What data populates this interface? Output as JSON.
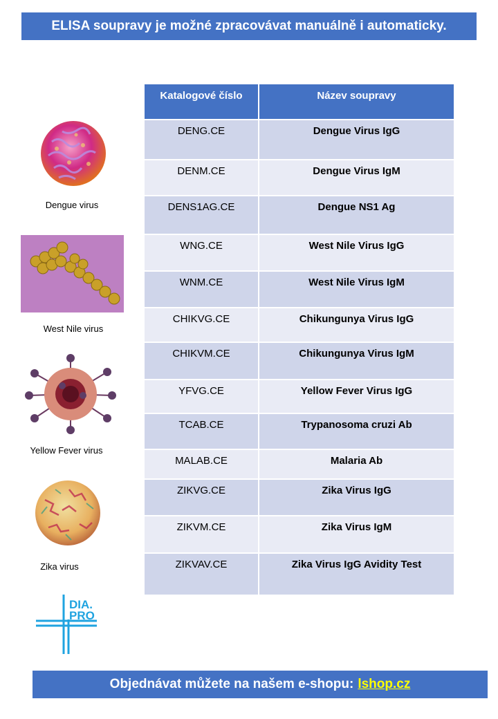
{
  "header": {
    "banner_text": "ELISA soupravy je možné zpracovávat manuálně i automaticky."
  },
  "table": {
    "headers": [
      "Katalogové číslo",
      "Název soupravy"
    ],
    "rows": [
      {
        "catalog": "DENG.CE",
        "name": "Dengue Virus IgG"
      },
      {
        "catalog": "DENM.CE",
        "name": "Dengue Virus IgM"
      },
      {
        "catalog": "DENS1AG.CE",
        "name": "Dengue NS1 Ag"
      },
      {
        "catalog": "WNG.CE",
        "name": "West Nile Virus IgG"
      },
      {
        "catalog": "WNM.CE",
        "name": "West Nile Virus IgM"
      },
      {
        "catalog": "CHIKVG.CE",
        "name": "Chikungunya Virus IgG"
      },
      {
        "catalog": "CHIKVM.CE",
        "name": "Chikungunya Virus IgM"
      },
      {
        "catalog": "YFVG.CE",
        "name": "Yellow Fever Virus IgG"
      },
      {
        "catalog": "TCAB.CE",
        "name": "Trypanosoma cruzi Ab"
      },
      {
        "catalog": "MALAB.CE",
        "name": "Malaria Ab"
      },
      {
        "catalog": "ZIKVG.CE",
        "name": "Zika Virus IgG"
      },
      {
        "catalog": "ZIKVM.CE",
        "name": "Zika Virus IgM"
      },
      {
        "catalog": "ZIKVAV.CE",
        "name": "Zika Virus IgG Avidity Test"
      }
    ]
  },
  "viruses": [
    {
      "label": "Dengue virus",
      "icon": "dengue-virus-image"
    },
    {
      "label": "West Nile virus",
      "icon": "west-nile-virus-image"
    },
    {
      "label": "Yellow Fever virus",
      "icon": "yellow-fever-virus-image"
    },
    {
      "label": "Zika virus",
      "icon": "zika-virus-image"
    }
  ],
  "logo": {
    "line1": "DIA.",
    "line2": "PRO"
  },
  "footer": {
    "text": "Objednávat můžete na našem e-shopu:",
    "link_text": "lshop.cz"
  },
  "colors": {
    "accent": "#4472c4",
    "row_dark": "#cfd5ea",
    "row_light": "#e9ebf5",
    "link": "#ffff00",
    "logo": "#1fa3e0"
  }
}
